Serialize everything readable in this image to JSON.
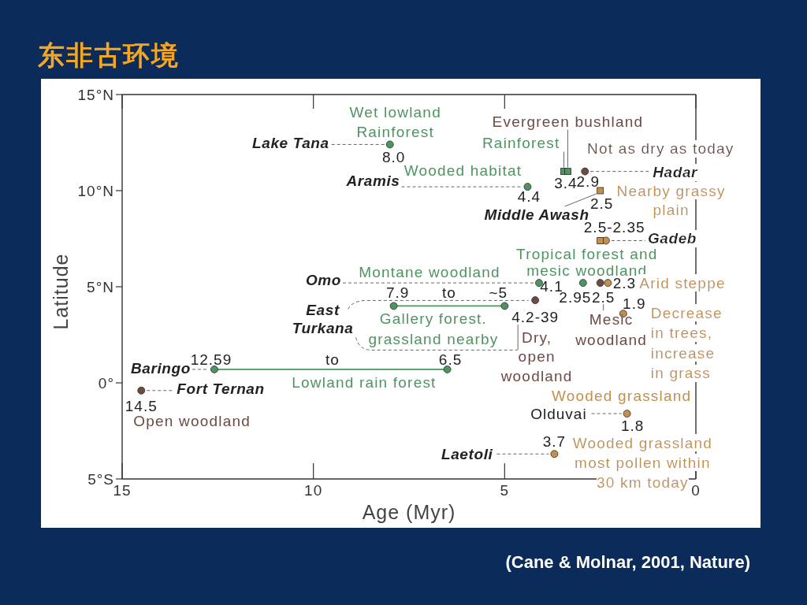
{
  "chart_data": {
    "type": "scatter",
    "title": "东非古环境",
    "xlabel": "Age (Myr)",
    "ylabel": "Latitude",
    "xlim": [
      15,
      0
    ],
    "xticks": [
      15,
      10,
      5,
      0
    ],
    "ylim": [
      -5,
      15
    ],
    "yticks": [
      {
        "value": 15,
        "label": "15°N"
      },
      {
        "value": 10,
        "label": "10°N"
      },
      {
        "value": 5,
        "label": "5°N"
      },
      {
        "value": 0,
        "label": "0°"
      },
      {
        "value": -5,
        "label": "5°S"
      }
    ],
    "marker": "circle",
    "series": [
      {
        "color": "#4f9460",
        "x": [
          8.0,
          4.4,
          4.1,
          2.95
        ],
        "values": [
          12.4,
          10.2,
          5.2,
          5.2
        ]
      },
      {
        "color": "#4f9460",
        "marker": "square",
        "x": [
          3.45,
          3.35
        ],
        "values": [
          11.0,
          11.0
        ]
      },
      {
        "type": "line",
        "color": "#4f9460",
        "x": [
          7.9,
          5
        ],
        "values": [
          4.0,
          4.0
        ]
      },
      {
        "type": "line",
        "color": "#4f9460",
        "x": [
          12.59,
          6.5
        ],
        "values": [
          0.7,
          0.7
        ]
      },
      {
        "color": "#6e4a44",
        "x": [
          2.9,
          4.2,
          2.5,
          14.5
        ],
        "values": [
          11.0,
          4.3,
          5.2,
          -0.4
        ]
      },
      {
        "color": "#c2904e",
        "x": [
          2.35,
          2.3,
          1.9,
          1.8,
          3.7
        ],
        "values": [
          7.4,
          5.2,
          3.6,
          -1.6,
          -3.7
        ]
      },
      {
        "color": "#c2904e",
        "marker": "square",
        "x": [
          2.5,
          2.5
        ],
        "values": [
          10.0,
          7.4
        ]
      }
    ],
    "annotations": [
      {
        "text": "Lake Tana",
        "x": 8.0,
        "y": 12.4
      },
      {
        "text": "Wet lowland Rainforest",
        "x": 8.0,
        "y": 12.4
      },
      {
        "text": "Aramis",
        "x": 4.4,
        "y": 10.2
      },
      {
        "text": "Wooded habitat",
        "x": 4.4,
        "y": 10.2
      },
      {
        "text": "Evergreen bushland",
        "x": 3.35,
        "y": 11.0
      },
      {
        "text": "Rainforest",
        "x": 3.45,
        "y": 11.0
      },
      {
        "text": "Hadar",
        "x": 2.9,
        "y": 11.0
      },
      {
        "text": "Not as dry as today",
        "x": 2.9,
        "y": 11.0
      },
      {
        "text": "Middle Awash",
        "x": 2.5,
        "y": 10.0
      },
      {
        "text": "Nearby grassy plain",
        "x": 2.5,
        "y": 10.0
      },
      {
        "text": "Gadeb",
        "x": 2.35,
        "y": 7.4
      },
      {
        "text": "Tropical forest and mesic woodland",
        "x": 2.95,
        "y": 5.2
      },
      {
        "text": "Omo",
        "x": 4.1,
        "y": 5.2
      },
      {
        "text": "Montane woodland",
        "x": 4.1,
        "y": 5.2
      },
      {
        "text": "Arid steppe",
        "x": 2.3,
        "y": 5.2
      },
      {
        "text": "East Turkana",
        "x": 7.9,
        "y": 4.0
      },
      {
        "text": "to",
        "x": 6.45,
        "y": 4.0
      },
      {
        "text": "Gallery forest. grassland nearby",
        "x": 6.45,
        "y": 4.0
      },
      {
        "text": "Dry, open woodland",
        "x": 4.2,
        "y": 4.3
      },
      {
        "text": "Mesic woodland",
        "x": 2.5,
        "y": 5.2
      },
      {
        "text": "Decrease in trees, increase in grass",
        "x": 1.9,
        "y": 3.6
      },
      {
        "text": "Baringo",
        "x": 12.59,
        "y": 0.7
      },
      {
        "text": "to",
        "x": 9.5,
        "y": 0.7
      },
      {
        "text": "Lowland rain forest",
        "x": 9.5,
        "y": 0.7
      },
      {
        "text": "Fort Ternan",
        "x": 14.5,
        "y": -0.4
      },
      {
        "text": "Open woodland",
        "x": 14.5,
        "y": -0.4
      },
      {
        "text": "Wooded grassland",
        "x": 1.8,
        "y": -1.6
      },
      {
        "text": "Olduvai",
        "x": 1.8,
        "y": -1.6
      },
      {
        "text": "Laetoli",
        "x": 3.7,
        "y": -3.7
      },
      {
        "text": "Wooded grassland most pollen within 30 km today",
        "x": 3.7,
        "y": -3.7
      },
      {
        "text": "8.0",
        "x": 8.0,
        "y": 12.4
      },
      {
        "text": "4.4",
        "x": 4.4,
        "y": 10.2
      },
      {
        "text": "4.1",
        "x": 4.1,
        "y": 5.2
      },
      {
        "text": "2.95",
        "x": 2.95,
        "y": 5.2
      },
      {
        "text": "3.4",
        "x": 3.4,
        "y": 11.0
      },
      {
        "text": "7.9",
        "x": 7.9,
        "y": 4.0
      },
      {
        "text": "~5",
        "x": 5,
        "y": 4.0
      },
      {
        "text": "12.59",
        "x": 12.59,
        "y": 0.7
      },
      {
        "text": "6.5",
        "x": 6.5,
        "y": 0.7
      },
      {
        "text": "2.9",
        "x": 2.9,
        "y": 11.0
      },
      {
        "text": "4.2-39",
        "x": 4.2,
        "y": 4.3
      },
      {
        "text": "2.5",
        "x": 2.5,
        "y": 5.2
      },
      {
        "text": "14.5",
        "x": 14.5,
        "y": -0.4
      },
      {
        "text": "2.3",
        "x": 2.3,
        "y": 5.2
      },
      {
        "text": "1.9",
        "x": 1.9,
        "y": 3.6
      },
      {
        "text": "1.8",
        "x": 1.8,
        "y": -1.6
      },
      {
        "text": "3.7",
        "x": 3.7,
        "y": -3.7
      },
      {
        "text": "2.5",
        "x": 2.5,
        "y": 10.0
      },
      {
        "text": "2.5-2.35",
        "x": 2.5,
        "y": 7.4
      },
      "(Cane & Molnar, 2001, Nature)"
    ]
  }
}
